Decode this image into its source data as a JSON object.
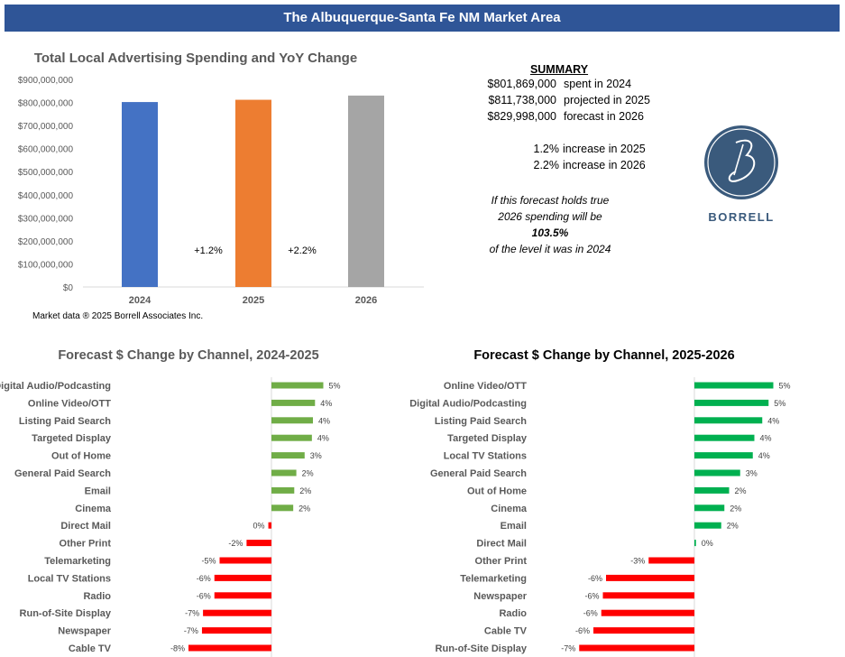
{
  "header": {
    "title": "The Albuquerque-Santa Fe NM Market Area"
  },
  "summary": {
    "heading": "SUMMARY",
    "rows": [
      {
        "amount": "$801,869,000",
        "label": "spent in 2024"
      },
      {
        "amount": "$811,738,000",
        "label": "projected in 2025"
      },
      {
        "amount": "$829,998,000",
        "label": "forecast in 2026"
      }
    ],
    "pct_rows": [
      {
        "pct": "1.2%",
        "label": "increase in 2025"
      },
      {
        "pct": "2.2%",
        "label": "increase in 2026"
      }
    ],
    "note_line1": "If this forecast holds true",
    "note_line2": "2026 spending will be",
    "note_value": "103.5%",
    "note_line3": "of the level it was in 2024"
  },
  "logo": {
    "text": "BORRELL",
    "color": "#3a5a7c"
  },
  "source": "Market data ® 2025 Borrell Associates Inc.",
  "chart_data": [
    {
      "type": "bar",
      "title": "Total Local Advertising Spending and YoY Change",
      "categories": [
        "2024",
        "2025",
        "2026"
      ],
      "values": [
        801869000,
        811738000,
        829998000
      ],
      "colors": [
        "#4472c4",
        "#ed7d31",
        "#a5a5a5"
      ],
      "ylim": [
        0,
        900000000
      ],
      "yticks": [
        "$0",
        "$100,000,000",
        "$200,000,000",
        "$300,000,000",
        "$400,000,000",
        "$500,000,000",
        "$600,000,000",
        "$700,000,000",
        "$800,000,000",
        "$900,000,000"
      ],
      "annotations": [
        "+1.2%",
        "+2.2%"
      ],
      "grid": false
    },
    {
      "type": "bar",
      "orientation": "horizontal",
      "title": "Forecast $ Change by Channel, 2024-2025",
      "positive_color": "#70ad47",
      "negative_color": "#ff0000",
      "categories": [
        "Digital Audio/Podcasting",
        "Online Video/OTT",
        "Listing Paid Search",
        "Targeted Display",
        "Out of Home",
        "General Paid Search",
        "Email",
        "Cinema",
        "Direct Mail",
        "Other Print",
        "Telemarketing",
        "Local TV Stations",
        "Radio",
        "Run-of-Site Display",
        "Newspaper",
        "Cable TV"
      ],
      "values": [
        5.0,
        4.2,
        4.0,
        3.9,
        3.2,
        2.4,
        2.2,
        2.1,
        -0.3,
        -2.4,
        -5.0,
        -5.5,
        -5.5,
        -6.6,
        -6.7,
        -8.0
      ],
      "labels": [
        "5%",
        "4%",
        "4%",
        "4%",
        "3%",
        "2%",
        "2%",
        "2%",
        "0%",
        "-2%",
        "-5%",
        "-6%",
        "-6%",
        "-7%",
        "-7%",
        "-8%"
      ]
    },
    {
      "type": "bar",
      "orientation": "horizontal",
      "title": "Forecast $ Change by Channel, 2025-2026",
      "positive_color": "#00b050",
      "negative_color": "#ff0000",
      "categories": [
        "Online Video/OTT",
        "Digital Audio/Podcasting",
        "Listing Paid Search",
        "Targeted Display",
        "Local TV Stations",
        "General Paid Search",
        "Out of Home",
        "Cinema",
        "Email",
        "Direct Mail",
        "Other Print",
        "Telemarketing",
        "Newspaper",
        "Radio",
        "Cable TV",
        "Run-of-Site Display"
      ],
      "values": [
        5.0,
        4.7,
        4.3,
        3.8,
        3.7,
        2.9,
        2.2,
        1.9,
        1.7,
        0.1,
        -2.9,
        -5.6,
        -5.8,
        -5.9,
        -6.4,
        -7.3
      ],
      "labels": [
        "5%",
        "5%",
        "4%",
        "4%",
        "4%",
        "3%",
        "2%",
        "2%",
        "2%",
        "0%",
        "-3%",
        "-6%",
        "-6%",
        "-6%",
        "-6%",
        "-7%"
      ]
    }
  ]
}
